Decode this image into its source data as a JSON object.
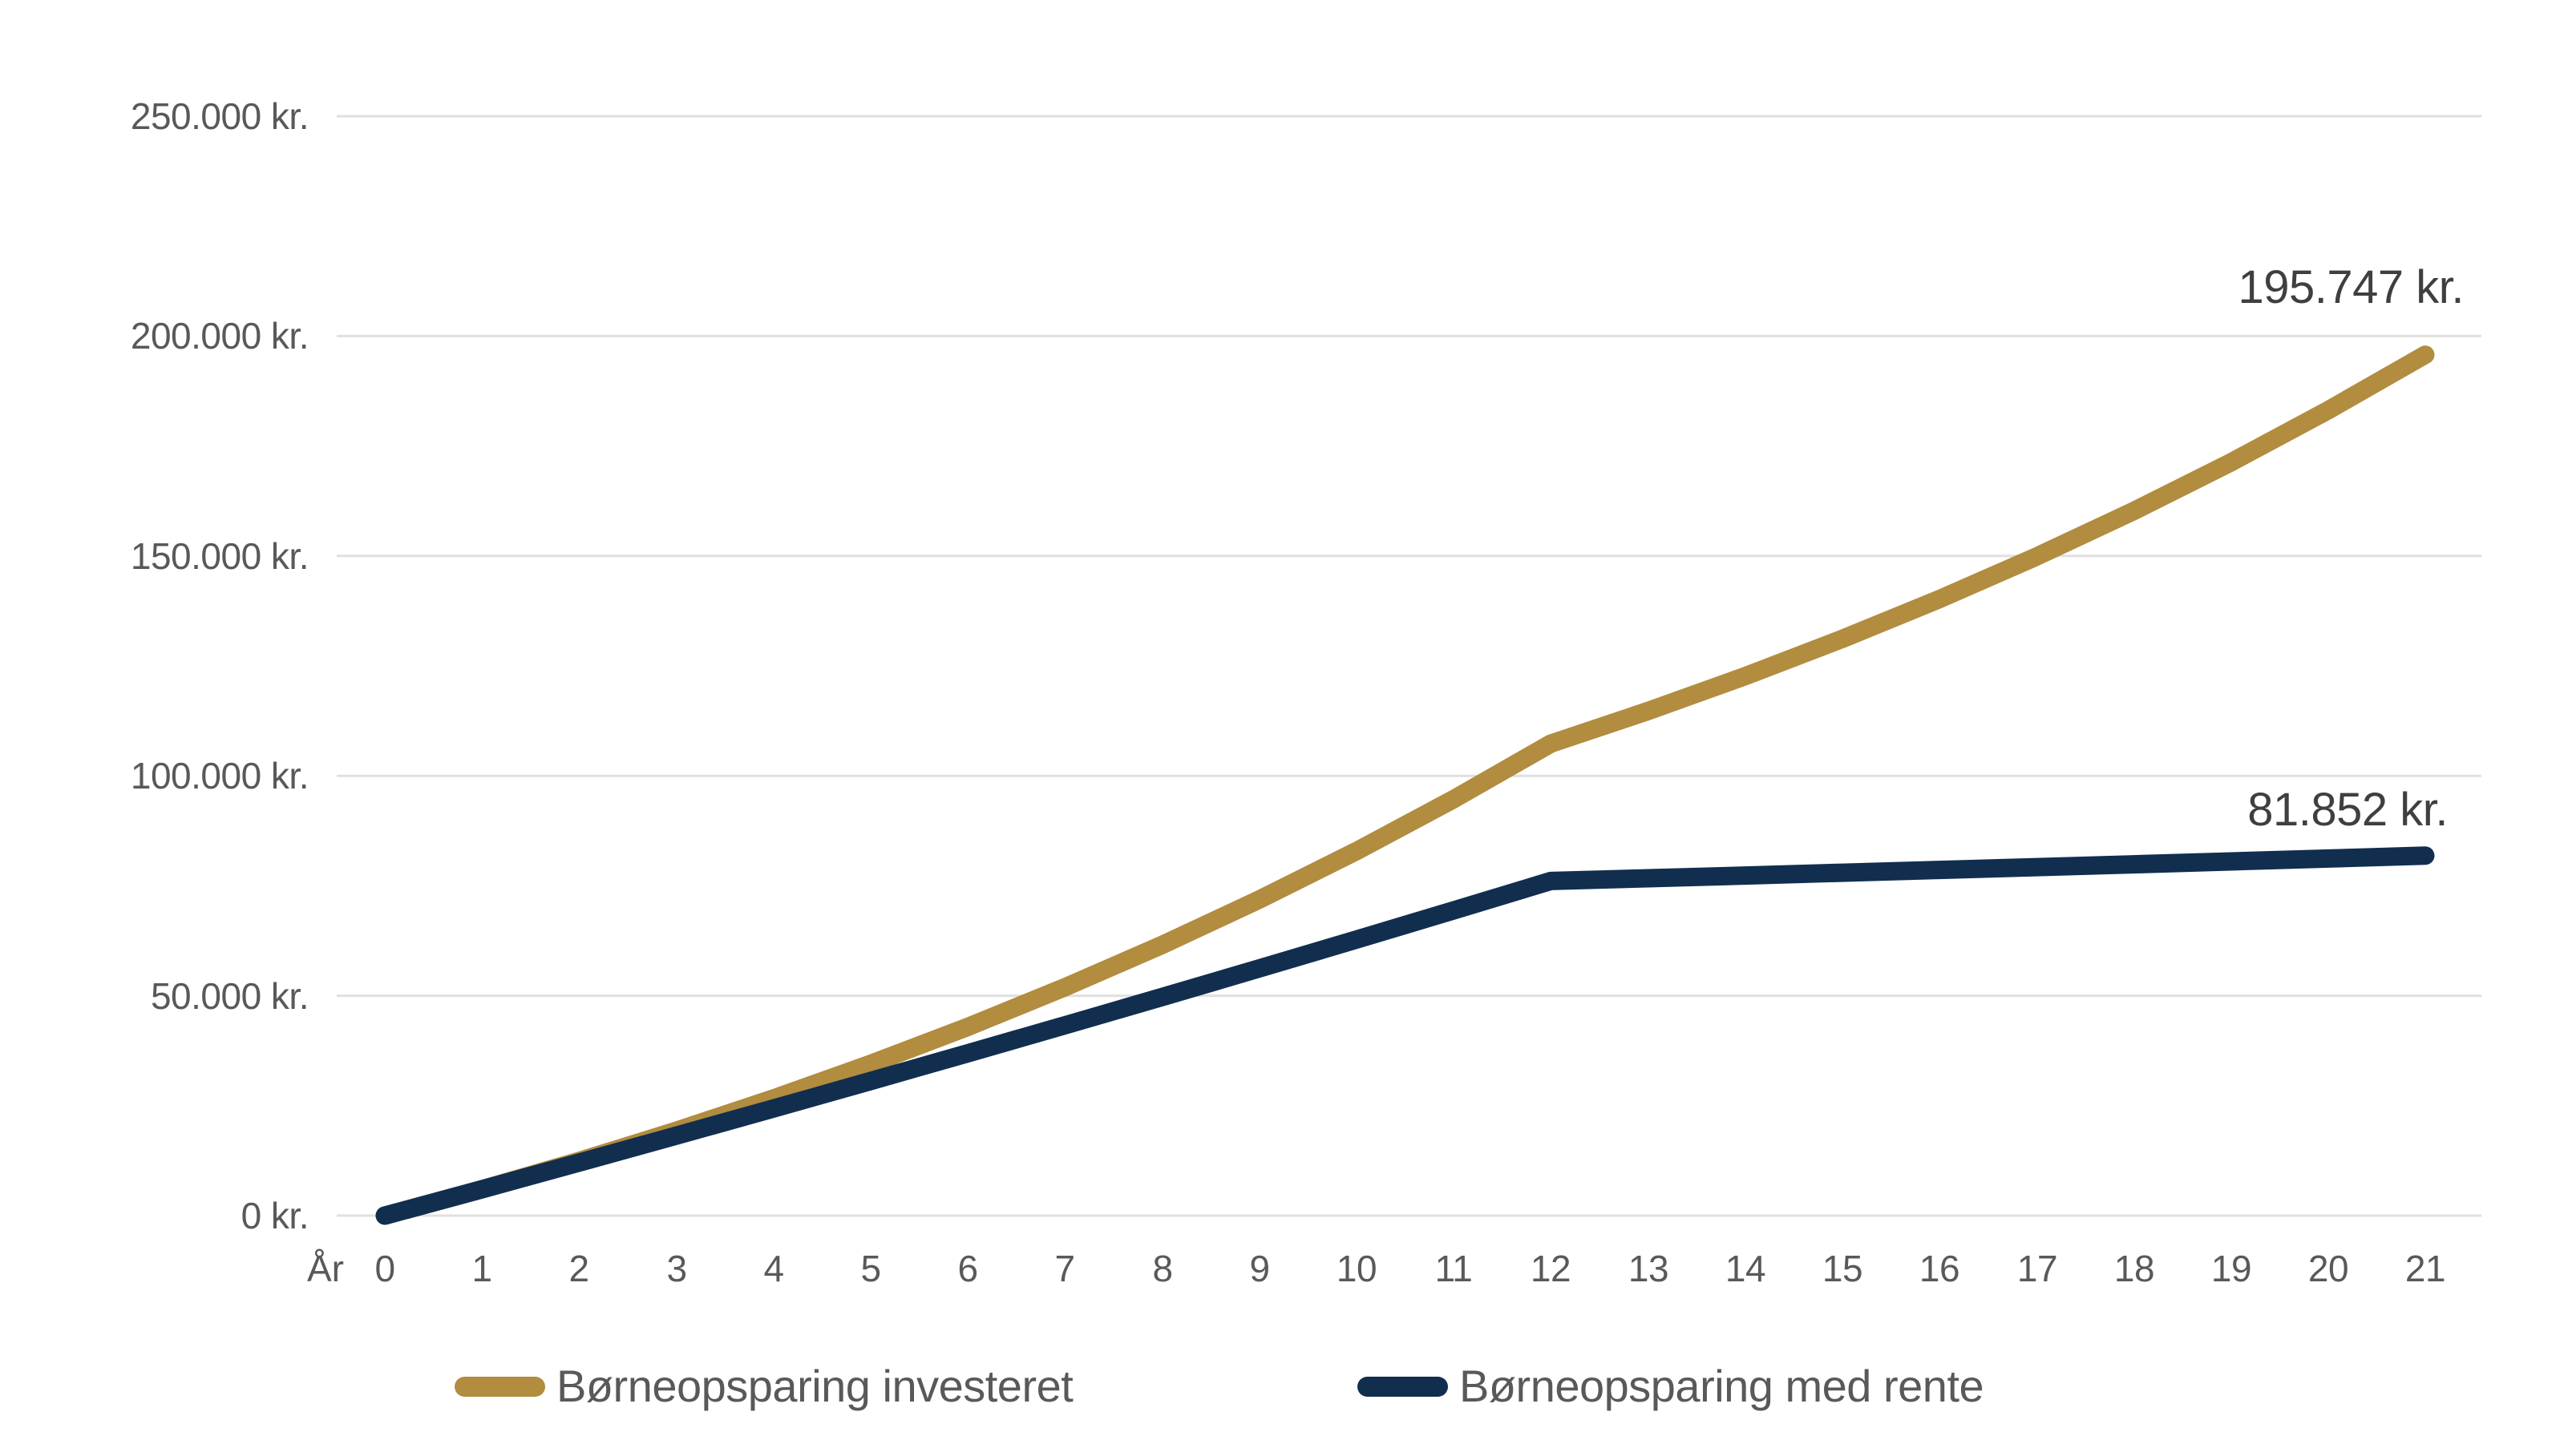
{
  "chart_data": {
    "type": "line",
    "title": "",
    "x_axis_label": "År",
    "x": [
      0,
      1,
      2,
      3,
      4,
      5,
      6,
      7,
      8,
      9,
      10,
      11,
      12,
      13,
      14,
      15,
      16,
      17,
      18,
      19,
      20,
      21
    ],
    "x_tick_labels": [
      "0",
      "1",
      "2",
      "3",
      "4",
      "5",
      "6",
      "7",
      "8",
      "9",
      "10",
      "11",
      "12",
      "13",
      "14",
      "15",
      "16",
      "17",
      "18",
      "19",
      "20",
      "21"
    ],
    "y_tick_labels": [
      "250.000 kr.",
      "200.000 kr.",
      "150.000 kr.",
      "100.000 kr.",
      "50.000 kr.",
      "0 kr."
    ],
    "y_tick_values": [
      250000,
      200000,
      150000,
      100000,
      50000,
      0
    ],
    "ylim": [
      0,
      250000
    ],
    "grid": true,
    "legend_position": "bottom",
    "series": [
      {
        "name": "Børneopsparing investeret",
        "color": "#B28C3F",
        "end_label": "195.747 kr.",
        "values": [
          0,
          6000,
          12420,
          19289,
          26639,
          34504,
          42919,
          51923,
          61558,
          71867,
          82898,
          94701,
          107330,
          114742,
          122666,
          131137,
          140193,
          149875,
          160226,
          171291,
          183120,
          195747
        ]
      },
      {
        "name": "Børneopsparing med rente",
        "color": "#112E4F",
        "end_label": "81.852 kr.",
        "values": [
          0,
          6000,
          12060,
          18181,
          24362,
          30606,
          36912,
          43281,
          49714,
          56211,
          62773,
          69401,
          76095,
          76714,
          77339,
          77968,
          78603,
          79242,
          79887,
          80537,
          81192,
          81852
        ]
      }
    ],
    "colors": {
      "grid": "#E0E0E0",
      "axis_text": "#58595B",
      "annotation_text": "#3F3F3F",
      "background": "#FFFFFF"
    }
  }
}
